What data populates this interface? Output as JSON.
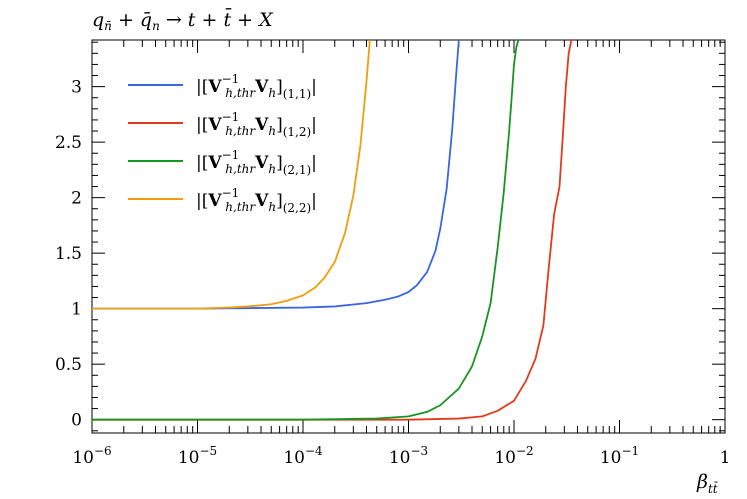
{
  "chart_data": {
    "type": "line",
    "title": "q_n̄ + q̄_n → t + t̄ + X",
    "xlabel": "β_tt̄",
    "ylabel": "",
    "xscale": "log",
    "xlim": [
      1e-06,
      1
    ],
    "ylim": [
      -0.12,
      3.42
    ],
    "x_tick_labels": [
      "10^-6",
      "10^-5",
      "10^-4",
      "10^-3",
      "10^-2",
      "10^-1",
      "1"
    ],
    "y_ticks": [
      0,
      0.5,
      1,
      1.5,
      2,
      2.5,
      3
    ],
    "y_tick_labels": [
      "0",
      "0.5",
      "1",
      "1.5",
      "2",
      "2.5",
      "3"
    ],
    "grid": false,
    "legend_position": "top-left",
    "series": [
      {
        "name": "|[V_{h,thr}^{-1} V_h]_{(1,1)}|",
        "color": "#3a66e0",
        "x": [
          1e-06,
          1e-05,
          0.0001,
          0.0002,
          0.0004,
          0.0006,
          0.0008,
          0.001,
          0.0012,
          0.0015,
          0.0018,
          0.002,
          0.0023,
          0.0026,
          0.0028,
          0.003
        ],
        "y": [
          1.0,
          1.0,
          1.01,
          1.02,
          1.05,
          1.08,
          1.11,
          1.15,
          1.21,
          1.33,
          1.52,
          1.72,
          2.08,
          2.62,
          3.05,
          3.42
        ]
      },
      {
        "name": "|[V_{h,thr}^{-1} V_h]_{(1,2)}|",
        "color": "#e03c1c",
        "x": [
          1e-06,
          0.0001,
          0.001,
          0.003,
          0.005,
          0.007,
          0.01,
          0.013,
          0.016,
          0.019,
          0.021,
          0.024,
          0.027,
          0.029,
          0.031,
          0.033,
          0.035
        ],
        "y": [
          0.0,
          0.0,
          0.0,
          0.01,
          0.03,
          0.08,
          0.17,
          0.35,
          0.55,
          0.85,
          1.3,
          1.85,
          2.1,
          2.55,
          3.0,
          3.3,
          3.42
        ]
      },
      {
        "name": "|[V_{h,thr}^{-1} V_h]_{(2,1)}|",
        "color": "#17961f",
        "x": [
          1e-06,
          0.0001,
          0.0005,
          0.001,
          0.0015,
          0.002,
          0.003,
          0.004,
          0.005,
          0.006,
          0.007,
          0.008,
          0.009,
          0.0095,
          0.01,
          0.0105,
          0.011
        ],
        "y": [
          0.0,
          0.0,
          0.01,
          0.03,
          0.07,
          0.13,
          0.28,
          0.48,
          0.75,
          1.05,
          1.55,
          2.05,
          2.6,
          2.9,
          3.2,
          3.35,
          3.42
        ]
      },
      {
        "name": "|[V_{h,thr}^{-1} V_h]_{(2,2)}|",
        "color": "#f29d0c",
        "x": [
          1e-06,
          5e-06,
          1e-05,
          2e-05,
          3e-05,
          4e-05,
          5e-05,
          7e-05,
          0.0001,
          0.00013,
          0.00016,
          0.0002,
          0.00025,
          0.0003,
          0.00035,
          0.0004,
          0.00043
        ],
        "y": [
          1.0,
          1.0,
          1.0,
          1.01,
          1.02,
          1.03,
          1.04,
          1.07,
          1.12,
          1.19,
          1.28,
          1.42,
          1.68,
          2.02,
          2.47,
          3.05,
          3.42
        ]
      }
    ]
  }
}
